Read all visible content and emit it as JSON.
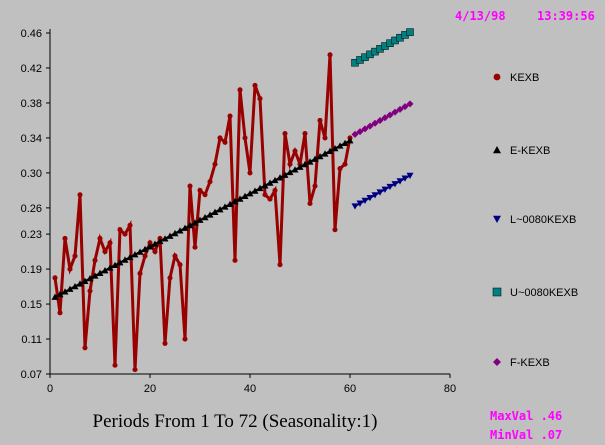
{
  "stamp": {
    "date": "4/13/98",
    "time": "13:39:56"
  },
  "stats": {
    "max_label": "MaxVal .46",
    "min_label": "MinVal .07"
  },
  "chart_data": {
    "type": "line",
    "xlabel": "Periods From 1 To 72 (Seasonality:1)",
    "ylabel": "",
    "xlim": [
      0,
      80
    ],
    "ylim": [
      0.07,
      0.46
    ],
    "xticks": [
      "0",
      "20",
      "40",
      "60",
      "80"
    ],
    "yticks": [
      "0.07",
      "0.11",
      "0.15",
      "0.19",
      "0.23",
      "0.26",
      "0.30",
      "0.34",
      "0.38",
      "0.42",
      "0.46"
    ],
    "legend_position": "right",
    "grid": false,
    "series": [
      {
        "name": "KEXB",
        "color": "#990000",
        "marker": "circle",
        "x": [
          1,
          2,
          3,
          4,
          5,
          6,
          7,
          8,
          9,
          10,
          11,
          12,
          13,
          14,
          15,
          16,
          17,
          18,
          19,
          20,
          21,
          22,
          23,
          24,
          25,
          26,
          27,
          28,
          29,
          30,
          31,
          32,
          33,
          34,
          35,
          36,
          37,
          38,
          39,
          40,
          41,
          42,
          43,
          44,
          45,
          46,
          47,
          48,
          49,
          50,
          51,
          52,
          53,
          54,
          55,
          56,
          57,
          58,
          59,
          60
        ],
        "y": [
          0.18,
          0.14,
          0.225,
          0.19,
          0.205,
          0.275,
          0.1,
          0.165,
          0.2,
          0.225,
          0.21,
          0.22,
          0.08,
          0.235,
          0.23,
          0.24,
          0.075,
          0.185,
          0.205,
          0.22,
          0.21,
          0.225,
          0.105,
          0.18,
          0.205,
          0.195,
          0.11,
          0.285,
          0.215,
          0.28,
          0.275,
          0.29,
          0.31,
          0.34,
          0.335,
          0.365,
          0.2,
          0.395,
          0.34,
          0.3,
          0.4,
          0.385,
          0.275,
          0.27,
          0.28,
          0.195,
          0.345,
          0.31,
          0.325,
          0.31,
          0.345,
          0.265,
          0.285,
          0.36,
          0.34,
          0.435,
          0.235,
          0.305,
          0.31,
          0.34
        ]
      },
      {
        "name": "E-KEXB",
        "color": "#000000",
        "marker": "triangle-up",
        "x_start": 1,
        "x_end": 60,
        "y_start": 0.158,
        "y_end": 0.337
      },
      {
        "name": "L~0080KEXB",
        "color": "#000080",
        "marker": "triangle-down",
        "x_start": 61,
        "x_end": 72,
        "y_start": 0.262,
        "y_end": 0.297
      },
      {
        "name": "U~0080KEXB",
        "color": "#008080",
        "marker": "square",
        "x_start": 61,
        "x_end": 72,
        "y_start": 0.426,
        "y_end": 0.461
      },
      {
        "name": "F-KEXB",
        "color": "#800080",
        "marker": "diamond",
        "x_start": 61,
        "x_end": 72,
        "y_start": 0.344,
        "y_end": 0.379
      }
    ]
  }
}
